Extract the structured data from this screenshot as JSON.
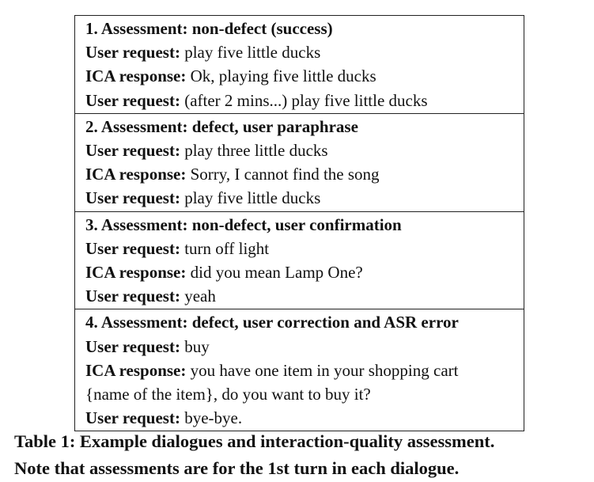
{
  "sections": [
    {
      "heading": "1. Assessment: non-defect (success)",
      "lines": [
        {
          "speaker": "User request:",
          "text": " play five little ducks"
        },
        {
          "speaker": "ICA response:",
          "text": " Ok, playing five little ducks"
        },
        {
          "speaker": "User request:",
          "text": " (after 2 mins...) play five little ducks"
        }
      ]
    },
    {
      "heading": "2. Assessment: defect, user paraphrase",
      "lines": [
        {
          "speaker": "User request:",
          "text": " play three little ducks"
        },
        {
          "speaker": "ICA response:",
          "text": " Sorry, I cannot find the song"
        },
        {
          "speaker": "User request:",
          "text": " play five little ducks"
        }
      ]
    },
    {
      "heading": "3. Assessment: non-defect, user confirmation",
      "lines": [
        {
          "speaker": "User request:",
          "text": " turn off light"
        },
        {
          "speaker": "ICA response:",
          "text": " did you mean Lamp One?"
        },
        {
          "speaker": "User request:",
          "text": " yeah"
        }
      ]
    },
    {
      "heading": "4. Assessment: defect, user correction and ASR error",
      "lines": [
        {
          "speaker": "User request:",
          "text": " buy"
        },
        {
          "speaker": "ICA response:",
          "text": " you have one item in your shopping cart"
        },
        {
          "speaker": "",
          "text": "{name of the item}, do you want to buy it?"
        },
        {
          "speaker": "User request:",
          "text": " bye-bye."
        }
      ]
    }
  ],
  "caption": {
    "line1": "Table 1:  Example dialogues and interaction-quality assessment.",
    "line2": "Note that assessments are for the 1st turn in each dialogue."
  }
}
